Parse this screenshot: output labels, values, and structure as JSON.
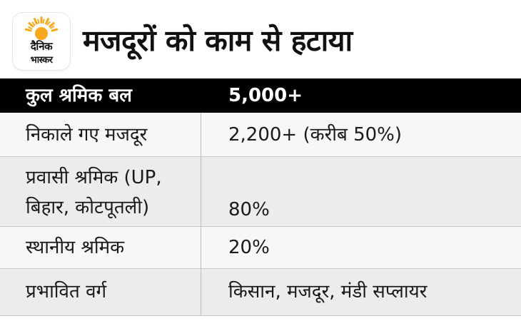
{
  "logo": {
    "line1": "दैनिक",
    "line2": "भास्कर",
    "sun_color": "#F7A81B"
  },
  "title": "मजदूरों को काम से हटाया",
  "table": {
    "header": {
      "label": "कुल श्रमिक बल",
      "value": "5,000+"
    },
    "rows": [
      {
        "label": "निकाले गए मजदूर",
        "value": "2,200+ (करीब 50%)"
      },
      {
        "label_lines": [
          "प्रवासी श्रमिक (UP,",
          "बिहार, कोटपूतली)"
        ],
        "value": "80%"
      },
      {
        "label": "स्थानीय श्रमिक",
        "value": "20%"
      },
      {
        "label": "प्रभावित वर्ग",
        "value": "किसान, मजदूर, मंडी सप्लायर"
      }
    ]
  },
  "colors": {
    "header_bg": "#000000",
    "header_text": "#FFFFFF",
    "row_light": "#F7F7F7",
    "row_dark": "#ECECEC"
  }
}
